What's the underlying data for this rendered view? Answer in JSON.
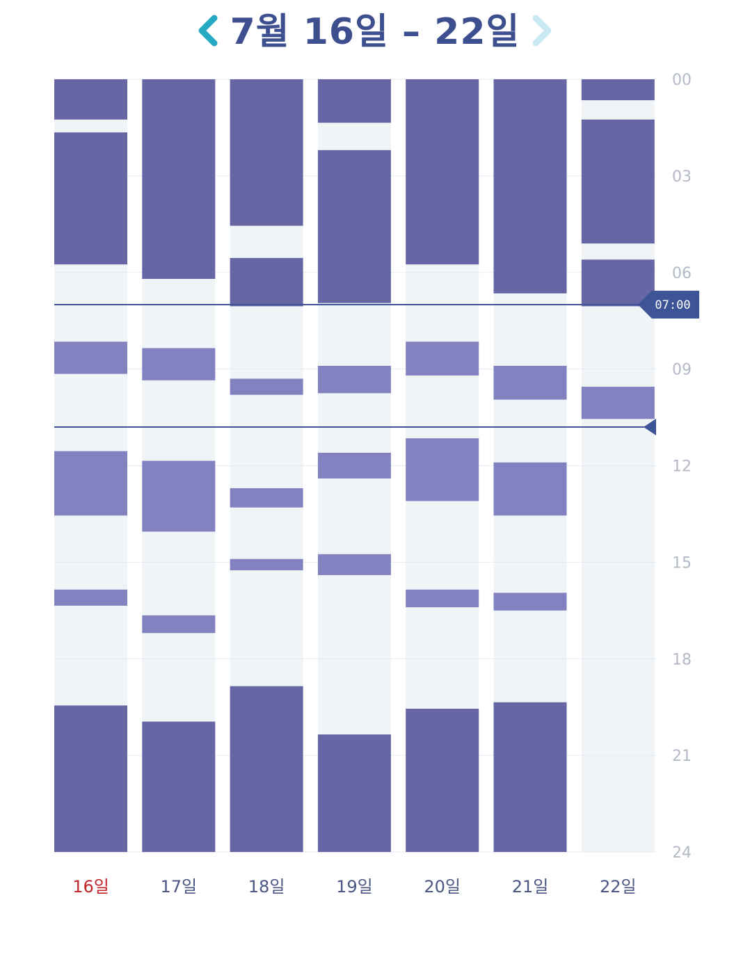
{
  "header": {
    "title": "7월 16일 – 22일",
    "prev_icon": "chevron-left-icon",
    "next_icon": "chevron-right-icon"
  },
  "colors": {
    "prev_arrow": "#27a9c4",
    "next_arrow": "#c8e9f1",
    "title": "#3d4f8e",
    "dark": "#6766a4",
    "light": "#8282c0",
    "empty": "#f0f4f7",
    "marker": "#3d5496",
    "hour_label": "#b4b9c6",
    "day_label": "#4a5683",
    "day_label_today": "#c4232a"
  },
  "chart_data": {
    "type": "bar",
    "orientation": "vertical-timeline",
    "y_unit": "hour",
    "ylim": [
      0,
      24
    ],
    "y_ticks": [
      "00",
      "03",
      "06",
      "09",
      "12",
      "15",
      "18",
      "21",
      "24"
    ],
    "categories": [
      "16일",
      "17일",
      "18일",
      "19일",
      "20일",
      "21일",
      "22일"
    ],
    "today": "16일",
    "current_time_marker": {
      "hour": 7.0,
      "label": "07:00"
    },
    "second_marker": {
      "hour": 10.8
    },
    "days": [
      {
        "day": "16일",
        "segments": [
          {
            "start": 0.0,
            "end": 1.25,
            "kind": "dark"
          },
          {
            "start": 1.65,
            "end": 5.75,
            "kind": "dark"
          },
          {
            "start": 8.15,
            "end": 9.15,
            "kind": "light"
          },
          {
            "start": 11.55,
            "end": 13.55,
            "kind": "light"
          },
          {
            "start": 15.85,
            "end": 16.35,
            "kind": "light"
          },
          {
            "start": 19.45,
            "end": 24.0,
            "kind": "dark"
          }
        ]
      },
      {
        "day": "17일",
        "segments": [
          {
            "start": 0.0,
            "end": 6.2,
            "kind": "dark"
          },
          {
            "start": 8.35,
            "end": 9.35,
            "kind": "light"
          },
          {
            "start": 11.85,
            "end": 14.05,
            "kind": "light"
          },
          {
            "start": 16.65,
            "end": 17.2,
            "kind": "light"
          },
          {
            "start": 19.95,
            "end": 24.0,
            "kind": "dark"
          }
        ]
      },
      {
        "day": "18일",
        "segments": [
          {
            "start": 0.0,
            "end": 4.55,
            "kind": "dark"
          },
          {
            "start": 5.55,
            "end": 7.05,
            "kind": "dark"
          },
          {
            "start": 9.3,
            "end": 9.8,
            "kind": "light"
          },
          {
            "start": 12.7,
            "end": 13.3,
            "kind": "light"
          },
          {
            "start": 14.9,
            "end": 15.25,
            "kind": "light"
          },
          {
            "start": 18.85,
            "end": 24.0,
            "kind": "dark"
          }
        ]
      },
      {
        "day": "19일",
        "segments": [
          {
            "start": 0.0,
            "end": 1.35,
            "kind": "dark"
          },
          {
            "start": 2.2,
            "end": 6.95,
            "kind": "dark"
          },
          {
            "start": 8.9,
            "end": 9.75,
            "kind": "light"
          },
          {
            "start": 11.6,
            "end": 12.4,
            "kind": "light"
          },
          {
            "start": 14.75,
            "end": 15.4,
            "kind": "light"
          },
          {
            "start": 20.35,
            "end": 24.0,
            "kind": "dark"
          }
        ]
      },
      {
        "day": "20일",
        "segments": [
          {
            "start": 0.0,
            "end": 5.75,
            "kind": "dark"
          },
          {
            "start": 8.15,
            "end": 9.2,
            "kind": "light"
          },
          {
            "start": 11.15,
            "end": 13.1,
            "kind": "light"
          },
          {
            "start": 15.85,
            "end": 16.4,
            "kind": "light"
          },
          {
            "start": 19.55,
            "end": 24.0,
            "kind": "dark"
          }
        ]
      },
      {
        "day": "21일",
        "segments": [
          {
            "start": 0.0,
            "end": 6.65,
            "kind": "dark"
          },
          {
            "start": 8.9,
            "end": 9.95,
            "kind": "light"
          },
          {
            "start": 11.9,
            "end": 13.55,
            "kind": "light"
          },
          {
            "start": 15.95,
            "end": 16.5,
            "kind": "light"
          },
          {
            "start": 19.35,
            "end": 24.0,
            "kind": "dark"
          }
        ]
      },
      {
        "day": "22일",
        "segments": [
          {
            "start": 0.0,
            "end": 0.65,
            "kind": "dark"
          },
          {
            "start": 1.25,
            "end": 5.1,
            "kind": "dark"
          },
          {
            "start": 5.6,
            "end": 7.05,
            "kind": "dark"
          },
          {
            "start": 9.55,
            "end": 10.55,
            "kind": "light"
          }
        ]
      }
    ]
  }
}
